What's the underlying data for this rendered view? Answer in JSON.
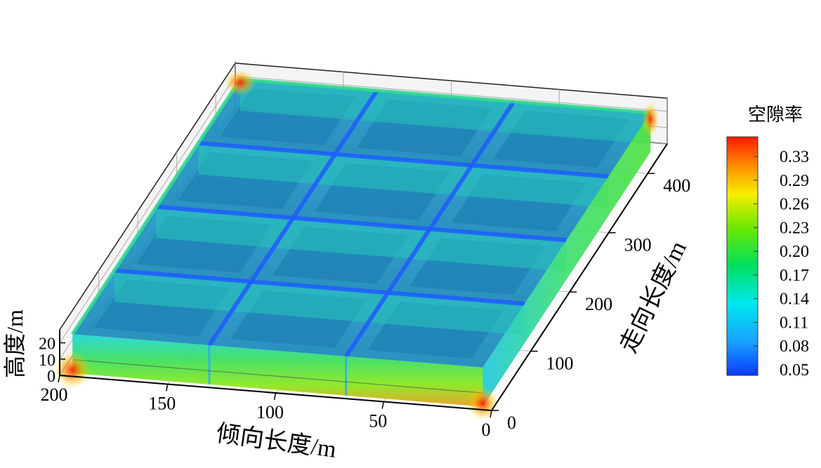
{
  "chart_data": {
    "type": "heatmap",
    "subtype": "3d-porosity-field",
    "axes": {
      "x": {
        "label": "倾向长度/m",
        "ticks": [
          0,
          50,
          100,
          150,
          200
        ],
        "range": [
          0,
          200
        ]
      },
      "y": {
        "label": "走向长度/m",
        "ticks": [
          0,
          100,
          200,
          300,
          400
        ],
        "range": [
          0,
          450
        ]
      },
      "z": {
        "label": "高度/m",
        "ticks": [
          0,
          10,
          20
        ],
        "range": [
          0,
          28
        ]
      }
    },
    "grid": true,
    "colorbar": {
      "title": "空隙率",
      "ticks": [
        0.33,
        0.29,
        0.26,
        0.23,
        0.2,
        0.17,
        0.14,
        0.11,
        0.08,
        0.05
      ],
      "range": [
        0.05,
        0.35
      ],
      "stops": [
        "#0a3bff",
        "#1aa0ff",
        "#00e8f0",
        "#00e060",
        "#6ce800",
        "#f8ee00",
        "#ff8c00",
        "#ff1a00"
      ]
    },
    "cells": {
      "x_divisions": 3,
      "y_divisions": 4
    },
    "values": {
      "porosity_min": 0.05,
      "porosity_max": 0.33,
      "edge_porosity": 0.2,
      "corner_porosity": 0.33,
      "interior_porosity": 0.09
    }
  }
}
